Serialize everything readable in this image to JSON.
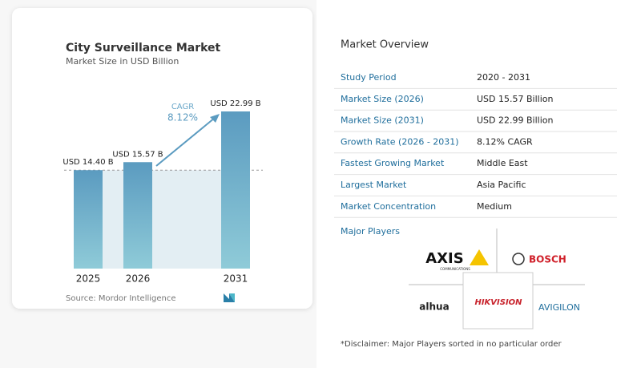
{
  "chart_data": {
    "type": "bar",
    "title": "City Surveillance Market",
    "subtitle": "Market Size in USD Billion",
    "categories": [
      "2025",
      "2026",
      "2031"
    ],
    "values": [
      14.4,
      15.57,
      22.99
    ],
    "value_labels": [
      "USD 14.40 B",
      "USD 15.57 B",
      "USD 22.99 B"
    ],
    "annotation": {
      "label": "CAGR",
      "value": "8.12%"
    },
    "source": "Source: Mordor Intelligence",
    "color": "#5b9bc0"
  },
  "overview": {
    "title": "Market Overview",
    "rows": [
      [
        "Study Period",
        "2020 - 2031"
      ],
      [
        "Market Size (2026)",
        "USD 15.57 Billion"
      ],
      [
        "Market Size (2031)",
        "USD 22.99 Billion"
      ],
      [
        "Growth Rate (2026 - 2031)",
        "8.12% CAGR"
      ],
      [
        "Fastest Growing Market",
        "Middle East"
      ],
      [
        "Largest Market",
        "Asia Pacific"
      ],
      [
        "Market Concentration",
        "Medium"
      ]
    ]
  },
  "players": {
    "title": "Major Players",
    "axis": "AXIS",
    "axis_sub": "COMMUNICATIONS",
    "bosch": "BOSCH",
    "dahua": "alhua",
    "hikvision": "HIKVISION",
    "avigilon": "AVIGILON"
  },
  "disclaimer": "*Disclaimer: Major Players sorted in no particular order"
}
